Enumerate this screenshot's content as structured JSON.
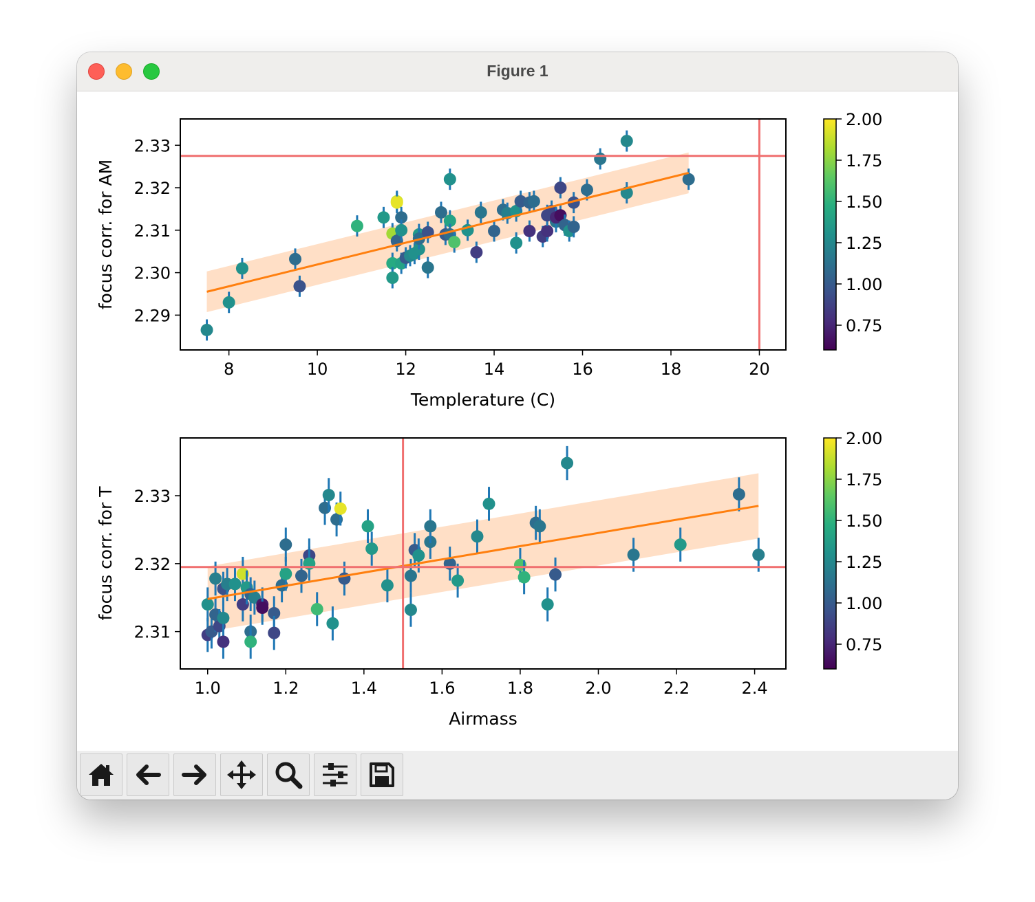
{
  "window": {
    "title": "Figure 1"
  },
  "toolbar": [
    {
      "name": "home-icon",
      "tooltip": "Reset original view"
    },
    {
      "name": "back-arrow-icon",
      "tooltip": "Back"
    },
    {
      "name": "forward-arrow-icon",
      "tooltip": "Forward"
    },
    {
      "name": "pan-icon",
      "tooltip": "Pan"
    },
    {
      "name": "zoom-icon",
      "tooltip": "Zoom"
    },
    {
      "name": "configure-subplots-icon",
      "tooltip": "Configure subplots"
    },
    {
      "name": "save-icon",
      "tooltip": "Save"
    }
  ],
  "colors": {
    "fit_line": "#ff7f0e",
    "fit_band": "#ffdcc0",
    "ref_line": "#f07070",
    "errorbar": "#1f77b4"
  },
  "chart_data": [
    {
      "type": "scatter",
      "title": "",
      "xlabel": "Templerature (C)",
      "ylabel": "focus corr. for AM",
      "xlim": [
        6.9,
        20.6
      ],
      "ylim": [
        2.2818,
        2.3362
      ],
      "xticks": [
        8,
        10,
        12,
        14,
        16,
        18,
        20
      ],
      "xtick_labels": [
        "8",
        "10",
        "12",
        "14",
        "16",
        "18",
        "20"
      ],
      "yticks": [
        2.29,
        2.3,
        2.31,
        2.32,
        2.33
      ],
      "ytick_labels": [
        "2.29",
        "2.30",
        "2.31",
        "2.32",
        "2.33"
      ],
      "colorbar": {
        "min": 0.6,
        "max": 2.0,
        "ticks": [
          0.75,
          1.0,
          1.25,
          1.5,
          1.75,
          2.0
        ],
        "tick_labels": [
          "0.75",
          "1.00",
          "1.25",
          "1.50",
          "1.75",
          "2.00"
        ],
        "colormap": "viridis"
      },
      "ref_lines": {
        "vertical": 20.0,
        "horizontal": 2.3275
      },
      "fit": {
        "x0": 7.5,
        "y0": 2.2955,
        "x1": 18.4,
        "y1": 2.3235,
        "band": 0.0048
      },
      "errorbar_halfwidth": 0.0025,
      "points": [
        [
          7.5,
          2.2865,
          1.25
        ],
        [
          8.0,
          2.293,
          1.3
        ],
        [
          8.3,
          2.301,
          1.3
        ],
        [
          9.5,
          2.3032,
          1.1
        ],
        [
          9.6,
          2.2968,
          0.95
        ],
        [
          10.9,
          2.311,
          1.5
        ],
        [
          11.5,
          2.313,
          1.35
        ],
        [
          11.7,
          2.3092,
          1.8
        ],
        [
          11.7,
          2.3022,
          1.45
        ],
        [
          11.7,
          2.2988,
          1.35
        ],
        [
          11.8,
          2.3168,
          1.9
        ],
        [
          11.8,
          2.3165,
          1.95
        ],
        [
          11.8,
          2.3075,
          1.05
        ],
        [
          11.9,
          2.313,
          1.1
        ],
        [
          11.9,
          2.31,
          1.3
        ],
        [
          11.9,
          2.3022,
          1.4
        ],
        [
          12.0,
          2.3035,
          1.0
        ],
        [
          12.1,
          2.304,
          1.25
        ],
        [
          12.2,
          2.3045,
          1.3
        ],
        [
          12.3,
          2.3055,
          1.3
        ],
        [
          12.3,
          2.309,
          1.35
        ],
        [
          12.3,
          2.308,
          1.1
        ],
        [
          12.5,
          2.3095,
          0.95
        ],
        [
          12.5,
          2.3012,
          1.15
        ],
        [
          12.8,
          2.3142,
          1.1
        ],
        [
          12.9,
          2.309,
          1.0
        ],
        [
          13.0,
          2.3122,
          1.4
        ],
        [
          13.0,
          2.309,
          1.1
        ],
        [
          13.0,
          2.322,
          1.3
        ],
        [
          13.1,
          2.3072,
          1.6
        ],
        [
          13.4,
          2.31,
          1.3
        ],
        [
          13.6,
          2.3048,
          0.85
        ],
        [
          13.7,
          2.3142,
          1.15
        ],
        [
          14.0,
          2.3098,
          1.05
        ],
        [
          14.2,
          2.3148,
          1.1
        ],
        [
          14.3,
          2.314,
          1.2
        ],
        [
          14.5,
          2.307,
          1.3
        ],
        [
          14.5,
          2.3145,
          1.3
        ],
        [
          14.6,
          2.3168,
          1.0
        ],
        [
          14.8,
          2.3098,
          0.8
        ],
        [
          14.8,
          2.3165,
          1.05
        ],
        [
          14.9,
          2.3168,
          1.1
        ],
        [
          15.1,
          2.3085,
          0.85
        ],
        [
          15.2,
          2.3098,
          0.8
        ],
        [
          15.2,
          2.3135,
          0.9
        ],
        [
          15.3,
          2.3145,
          0.9
        ],
        [
          15.4,
          2.312,
          1.15
        ],
        [
          15.4,
          2.313,
          0.75
        ],
        [
          15.5,
          2.3135,
          0.65
        ],
        [
          15.5,
          2.32,
          0.9
        ],
        [
          15.6,
          2.3112,
          1.05
        ],
        [
          15.7,
          2.3098,
          1.3
        ],
        [
          15.8,
          2.3108,
          1.05
        ],
        [
          15.8,
          2.3165,
          0.95
        ],
        [
          16.1,
          2.3195,
          1.1
        ],
        [
          16.4,
          2.3268,
          1.15
        ],
        [
          17.0,
          2.3188,
          1.25
        ],
        [
          17.0,
          2.331,
          1.25
        ],
        [
          18.4,
          2.322,
          1.1
        ]
      ]
    },
    {
      "type": "scatter",
      "title": "",
      "xlabel": "Airmass",
      "ylabel": "focus corr. for T",
      "xlim": [
        0.93,
        2.48
      ],
      "ylim": [
        2.3045,
        2.3385
      ],
      "xticks": [
        1.0,
        1.2,
        1.4,
        1.6,
        1.8,
        2.0,
        2.2,
        2.4
      ],
      "xtick_labels": [
        "1.0",
        "1.2",
        "1.4",
        "1.6",
        "1.8",
        "2.0",
        "2.2",
        "2.4"
      ],
      "yticks": [
        2.31,
        2.32,
        2.33
      ],
      "ytick_labels": [
        "2.31",
        "2.32",
        "2.33"
      ],
      "colorbar": {
        "min": 0.6,
        "max": 2.0,
        "ticks": [
          0.75,
          1.0,
          1.25,
          1.5,
          1.75,
          2.0
        ],
        "tick_labels": [
          "0.75",
          "1.00",
          "1.25",
          "1.50",
          "1.75",
          "2.00"
        ],
        "colormap": "viridis"
      },
      "ref_lines": {
        "vertical": 1.5,
        "horizontal": 2.3195
      },
      "fit": {
        "x0": 1.0,
        "y0": 2.3148,
        "x1": 2.41,
        "y1": 2.3285,
        "band": 0.0048
      },
      "errorbar_halfwidth": 0.0025,
      "points": [
        [
          1.0,
          2.314,
          1.3
        ],
        [
          1.0,
          2.3095,
          0.85
        ],
        [
          1.01,
          2.31,
          1.0
        ],
        [
          1.02,
          2.3178,
          1.2
        ],
        [
          1.02,
          2.3125,
          1.05
        ],
        [
          1.03,
          2.3108,
          0.9
        ],
        [
          1.04,
          2.3163,
          0.95
        ],
        [
          1.04,
          2.3085,
          0.8
        ],
        [
          1.04,
          2.312,
          1.25
        ],
        [
          1.05,
          2.317,
          1.2
        ],
        [
          1.07,
          2.317,
          1.3
        ],
        [
          1.09,
          2.3185,
          1.9
        ],
        [
          1.09,
          2.314,
          0.85
        ],
        [
          1.1,
          2.3165,
          1.35
        ],
        [
          1.11,
          2.3155,
          1.05
        ],
        [
          1.11,
          2.31,
          1.1
        ],
        [
          1.11,
          2.3085,
          1.5
        ],
        [
          1.12,
          2.315,
          1.2
        ],
        [
          1.14,
          2.314,
          0.7
        ],
        [
          1.14,
          2.3135,
          0.65
        ],
        [
          1.17,
          2.3127,
          1.0
        ],
        [
          1.17,
          2.3098,
          0.9
        ],
        [
          1.19,
          2.3168,
          1.1
        ],
        [
          1.2,
          2.3185,
          1.4
        ],
        [
          1.2,
          2.3228,
          1.1
        ],
        [
          1.24,
          2.3182,
          1.05
        ],
        [
          1.26,
          2.3212,
          0.9
        ],
        [
          1.26,
          2.32,
          1.4
        ],
        [
          1.28,
          2.3133,
          1.55
        ],
        [
          1.3,
          2.3282,
          1.1
        ],
        [
          1.31,
          2.3301,
          1.25
        ],
        [
          1.32,
          2.3112,
          1.3
        ],
        [
          1.33,
          2.3265,
          1.1
        ],
        [
          1.34,
          2.3281,
          1.95
        ],
        [
          1.35,
          2.3178,
          1.0
        ],
        [
          1.41,
          2.3255,
          1.4
        ],
        [
          1.42,
          2.3222,
          1.35
        ],
        [
          1.46,
          2.3168,
          1.3
        ],
        [
          1.52,
          2.3182,
          1.15
        ],
        [
          1.52,
          2.3132,
          1.25
        ],
        [
          1.53,
          2.322,
          1.0
        ],
        [
          1.54,
          2.3212,
          1.3
        ],
        [
          1.57,
          2.3232,
          1.15
        ],
        [
          1.57,
          2.3255,
          1.15
        ],
        [
          1.62,
          2.32,
          1.05
        ],
        [
          1.64,
          2.3175,
          1.35
        ],
        [
          1.69,
          2.324,
          1.25
        ],
        [
          1.72,
          2.3288,
          1.3
        ],
        [
          1.8,
          2.3198,
          1.6
        ],
        [
          1.81,
          2.318,
          1.5
        ],
        [
          1.84,
          2.326,
          1.1
        ],
        [
          1.85,
          2.3255,
          1.15
        ],
        [
          1.87,
          2.314,
          1.3
        ],
        [
          1.89,
          2.3184,
          1.0
        ],
        [
          1.92,
          2.3348,
          1.25
        ],
        [
          2.09,
          2.3213,
          1.15
        ],
        [
          2.21,
          2.3228,
          1.35
        ],
        [
          2.36,
          2.3302,
          1.1
        ],
        [
          2.41,
          2.3213,
          1.2
        ]
      ]
    }
  ]
}
